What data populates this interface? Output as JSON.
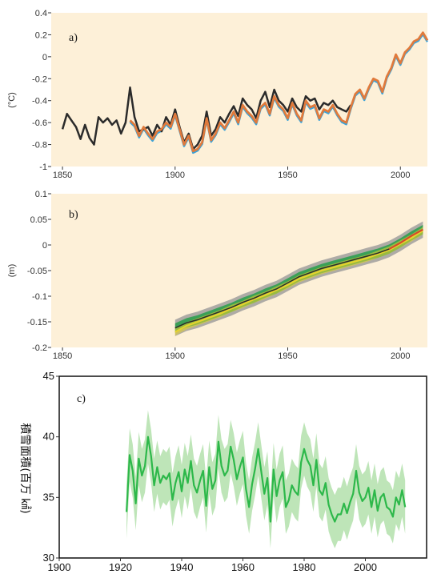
{
  "chart_data": [
    {
      "type": "line",
      "panel_label": "a)",
      "ylabel": "(°C)",
      "xlim": [
        1845,
        2012
      ],
      "ylim": [
        -1.0,
        0.4
      ],
      "xticks": [
        "1850",
        "1900",
        "1950",
        "2000"
      ],
      "yticks": [
        "0.4",
        "0.2",
        "0",
        "-0.2",
        "-0.4",
        "-0.6",
        "-0.8",
        "-1"
      ],
      "grid": false,
      "colors": {
        "background": "#fdf0d8",
        "black": "#2b2b2b",
        "orange": "#e07a3c",
        "blue": "#3ba3d9"
      },
      "series": [
        {
          "x": [
            1850,
            1852,
            1854,
            1856,
            1858,
            1860,
            1862,
            1864,
            1866,
            1868,
            1870,
            1872,
            1874,
            1876,
            1878,
            1880,
            1882,
            1884,
            1886,
            1888,
            1890,
            1892,
            1894,
            1896,
            1898,
            1900,
            1902,
            1904,
            1906,
            1908,
            1910,
            1912,
            1914,
            1916,
            1918,
            1920,
            1922,
            1924,
            1926,
            1928,
            1930,
            1932,
            1934,
            1936,
            1938,
            1940,
            1942,
            1944,
            1946,
            1948,
            1950,
            1952,
            1954,
            1956,
            1958,
            1960,
            1962,
            1964,
            1966,
            1968,
            1970,
            1972,
            1974,
            1976,
            1978
          ],
          "values": [
            -0.66,
            -0.52,
            -0.58,
            -0.64,
            -0.75,
            -0.62,
            -0.74,
            -0.8,
            -0.55,
            -0.6,
            -0.56,
            -0.62,
            -0.58,
            -0.7,
            -0.6,
            -0.28,
            -0.55,
            -0.68,
            -0.66,
            -0.64,
            -0.72,
            -0.62,
            -0.68,
            -0.55,
            -0.62,
            -0.48,
            -0.64,
            -0.78,
            -0.7,
            -0.84,
            -0.8,
            -0.72,
            -0.5,
            -0.72,
            -0.66,
            -0.55,
            -0.6,
            -0.52,
            -0.45,
            -0.54,
            -0.38,
            -0.44,
            -0.48,
            -0.56,
            -0.4,
            -0.32,
            -0.46,
            -0.3,
            -0.4,
            -0.44,
            -0.5,
            -0.38,
            -0.46,
            -0.5,
            -0.36,
            -0.4,
            -0.38,
            -0.48,
            -0.42,
            -0.44,
            -0.4,
            -0.46,
            -0.48,
            -0.5,
            -0.44
          ]
        },
        {
          "x": [
            1880,
            1882,
            1884,
            1886,
            1888,
            1890,
            1892,
            1894,
            1896,
            1898,
            1900,
            1902,
            1904,
            1906,
            1908,
            1910,
            1912,
            1914,
            1916,
            1918,
            1920,
            1922,
            1924,
            1926,
            1928,
            1930,
            1932,
            1934,
            1936,
            1938,
            1940,
            1942,
            1944,
            1946,
            1948,
            1950,
            1952,
            1954,
            1956,
            1958,
            1960,
            1962,
            1964,
            1966,
            1968,
            1970,
            1972,
            1974,
            1976,
            1978,
            1980,
            1982,
            1984,
            1986,
            1988,
            1990,
            1992,
            1994,
            1996,
            1998,
            2000,
            2002,
            2004,
            2006,
            2008,
            2010,
            2012
          ],
          "values": [
            -0.58,
            -0.62,
            -0.72,
            -0.64,
            -0.7,
            -0.75,
            -0.68,
            -0.66,
            -0.6,
            -0.64,
            -0.52,
            -0.66,
            -0.8,
            -0.72,
            -0.86,
            -0.84,
            -0.78,
            -0.56,
            -0.76,
            -0.7,
            -0.6,
            -0.65,
            -0.58,
            -0.5,
            -0.6,
            -0.44,
            -0.5,
            -0.54,
            -0.6,
            -0.46,
            -0.42,
            -0.52,
            -0.36,
            -0.44,
            -0.48,
            -0.56,
            -0.42,
            -0.52,
            -0.58,
            -0.4,
            -0.46,
            -0.44,
            -0.56,
            -0.48,
            -0.5,
            -0.44,
            -0.52,
            -0.58,
            -0.6,
            -0.46,
            -0.34,
            -0.3,
            -0.38,
            -0.28,
            -0.2,
            -0.22,
            -0.32,
            -0.18,
            -0.1,
            0.02,
            -0.06,
            0.04,
            0.08,
            0.14,
            0.16,
            0.22,
            0.15
          ]
        },
        {
          "x": [
            1880,
            1900,
            1920,
            1940,
            1950,
            1970,
            1990,
            2000,
            2010
          ],
          "values": [
            -0.6,
            -0.54,
            -0.62,
            -0.4,
            -0.52,
            -0.44,
            -0.22,
            -0.02,
            0.14
          ]
        }
      ]
    },
    {
      "type": "line",
      "panel_label": "b)",
      "ylabel": "(m)",
      "xlim": [
        1845,
        2012
      ],
      "ylim": [
        -0.2,
        0.1
      ],
      "xticks": [
        "1850",
        "1900",
        "1950",
        "2000"
      ],
      "yticks": [
        "0.1",
        "0.05",
        "0",
        "-0.05",
        "-0.1",
        "-0.15",
        "-0.2"
      ],
      "grid": false,
      "colors": {
        "background": "#fdf0d8",
        "gray": "#9a9a9a",
        "green": "#2f9e4f",
        "yellow": "#e6d22e",
        "black": "#2b2b2b",
        "red": "#d9452b"
      },
      "series": [
        {
          "x": [
            1900,
            1905,
            1910,
            1915,
            1920,
            1925,
            1930,
            1935,
            1940,
            1945,
            1950,
            1955,
            1960,
            1965,
            1970,
            1975,
            1980,
            1985,
            1990,
            1995,
            2000,
            2005,
            2010
          ],
          "values": [
            -0.162,
            -0.152,
            -0.146,
            -0.138,
            -0.13,
            -0.122,
            -0.112,
            -0.104,
            -0.094,
            -0.086,
            -0.074,
            -0.062,
            -0.054,
            -0.046,
            -0.04,
            -0.034,
            -0.028,
            -0.022,
            -0.016,
            -0.008,
            0.004,
            0.018,
            0.03
          ]
        },
        {
          "x": [
            1900,
            1905,
            1910,
            1915,
            1920,
            1925,
            1930,
            1935,
            1940,
            1945,
            1950,
            1955,
            1960,
            1965,
            1970,
            1975,
            1980,
            1985,
            1990,
            1995,
            2000,
            2005,
            2010
          ],
          "values": [
            -0.17,
            -0.158,
            -0.15,
            -0.142,
            -0.134,
            -0.124,
            -0.116,
            -0.106,
            -0.098,
            -0.088,
            -0.078,
            -0.066,
            -0.058,
            -0.05,
            -0.044,
            -0.038,
            -0.032,
            -0.026,
            -0.018,
            -0.01,
            0.002,
            0.014,
            0.028
          ]
        }
      ]
    },
    {
      "type": "line",
      "panel_label": "c)",
      "ylabel": "積雪面積(百万 ㎢)",
      "xlim": [
        1900,
        2020
      ],
      "ylim": [
        30,
        45
      ],
      "xticks": [
        "1900",
        "1920",
        "1940",
        "1960",
        "1980",
        "2000"
      ],
      "yticks": [
        "45",
        "40",
        "35",
        "30"
      ],
      "grid": false,
      "colors": {
        "line": "#2db84a",
        "band": "#a8dca0"
      },
      "series": [
        {
          "x": [
            1922,
            1923,
            1924,
            1925,
            1926,
            1927,
            1928,
            1929,
            1930,
            1931,
            1932,
            1933,
            1934,
            1935,
            1936,
            1937,
            1938,
            1939,
            1940,
            1941,
            1942,
            1943,
            1944,
            1945,
            1946,
            1947,
            1948,
            1949,
            1950,
            1951,
            1952,
            1953,
            1954,
            1955,
            1956,
            1957,
            1958,
            1959,
            1960,
            1961,
            1962,
            1963,
            1964,
            1965,
            1966,
            1967,
            1968,
            1969,
            1970,
            1971,
            1972,
            1973,
            1974,
            1975,
            1976,
            1977,
            1978,
            1979,
            1980,
            1981,
            1982,
            1983,
            1984,
            1985,
            1986,
            1987,
            1988,
            1989,
            1990,
            1991,
            1992,
            1993,
            1994,
            1995,
            1996,
            1997,
            1998,
            1999,
            2000,
            2001,
            2002,
            2003,
            2004,
            2005,
            2006,
            2007,
            2008,
            2009,
            2010,
            2011,
            2012,
            2013
          ],
          "values": [
            33.8,
            38.5,
            37.2,
            34.5,
            38.2,
            36.8,
            37.6,
            40.0,
            38.4,
            36.0,
            37.5,
            36.2,
            36.8,
            36.5,
            37.0,
            34.8,
            36.2,
            37.1,
            35.5,
            37.3,
            36.2,
            38.0,
            36.0,
            35.4,
            36.4,
            37.2,
            34.3,
            37.5,
            35.7,
            36.4,
            39.6,
            37.6,
            36.8,
            37.2,
            39.2,
            38.1,
            36.5,
            37.5,
            38.3,
            35.7,
            34.2,
            36.1,
            37.4,
            39.0,
            37.1,
            35.3,
            36.6,
            33.0,
            37.3,
            35.1,
            36.4,
            37.1,
            34.2,
            34.8,
            36.0,
            35.5,
            35.2,
            37.9,
            39.0,
            38.1,
            37.6,
            36.0,
            38.1,
            35.6,
            35.2,
            36.2,
            34.4,
            33.6,
            33.0,
            33.6,
            33.6,
            34.5,
            33.7,
            34.6,
            35.3,
            37.2,
            35.4,
            34.7,
            35.0,
            35.8,
            34.2,
            35.6,
            33.9,
            35.0,
            35.3,
            34.2,
            34.0,
            33.4,
            35.0,
            34.4,
            35.6,
            34.2
          ]
        }
      ]
    }
  ]
}
